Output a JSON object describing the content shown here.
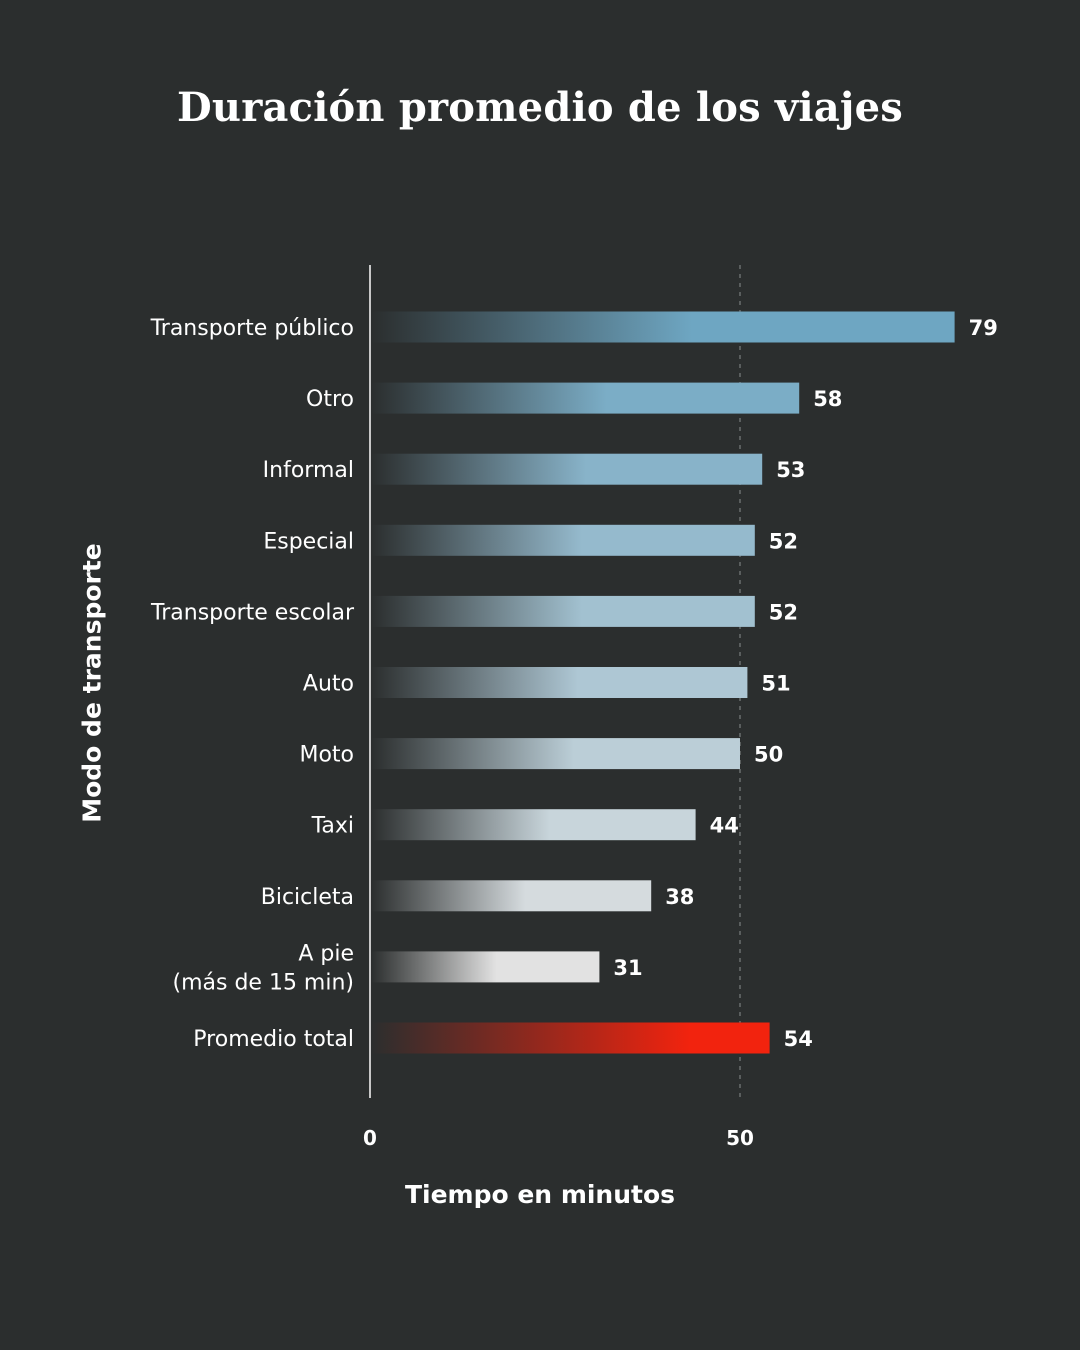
{
  "chart_data": {
    "type": "bar",
    "orientation": "horizontal",
    "title": "Duración promedio de los viajes",
    "xlabel": "Tiempo en minutos",
    "ylabel": "Modo de transporte",
    "categories": [
      "Transporte público",
      "Otro",
      "Informal",
      "Especial",
      "Transporte escolar",
      "Auto",
      "Moto",
      "Taxi",
      "Bicicleta",
      "A pie\n(más de 15 min)",
      "Promedio total"
    ],
    "values": [
      79,
      58,
      53,
      52,
      52,
      51,
      50,
      44,
      38,
      31,
      54
    ],
    "xlim": [
      0,
      80
    ],
    "xticks": [
      "0",
      "50"
    ],
    "reference_line": 50,
    "colors": {
      "background": "#2b2e2e",
      "bar_top": "#6ea6c2",
      "bar_bottom": "#e2e2e2",
      "highlight": "#f2230e"
    }
  }
}
